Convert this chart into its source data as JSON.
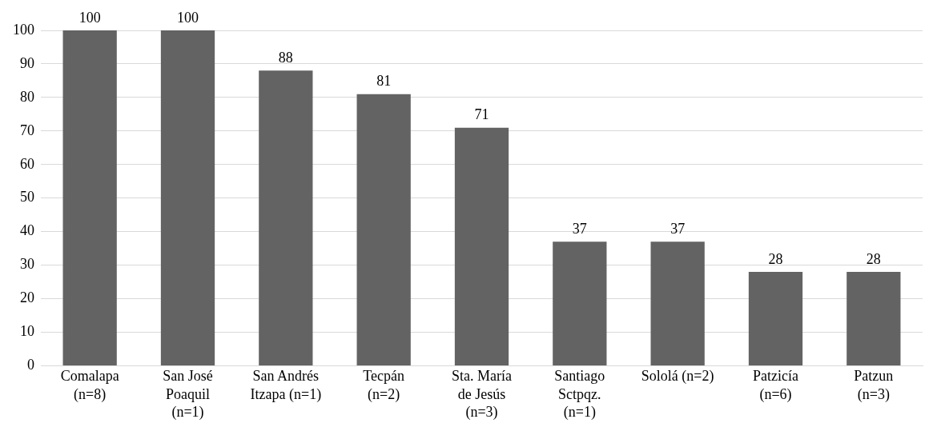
{
  "chart_data": {
    "type": "bar",
    "categories": [
      "Comalapa\n(n=8)",
      "San José\nPoaquil\n(n=1)",
      "San Andrés\nItzapa (n=1)",
      "Tecpán\n(n=2)",
      "Sta. María\nde Jesús\n(n=3)",
      "Santiago\nSctpqz.\n(n=1)",
      "Sololá (n=2)",
      "Patzicía\n(n=6)",
      "Patzun\n(n=3)"
    ],
    "values": [
      100,
      100,
      88,
      81,
      71,
      37,
      37,
      28,
      28
    ],
    "color": "#636363",
    "ylim": [
      0,
      100
    ],
    "yticks": [
      0,
      10,
      20,
      30,
      40,
      50,
      60,
      70,
      80,
      90,
      100
    ],
    "grid": "y",
    "data_labels": true,
    "legend": false
  }
}
